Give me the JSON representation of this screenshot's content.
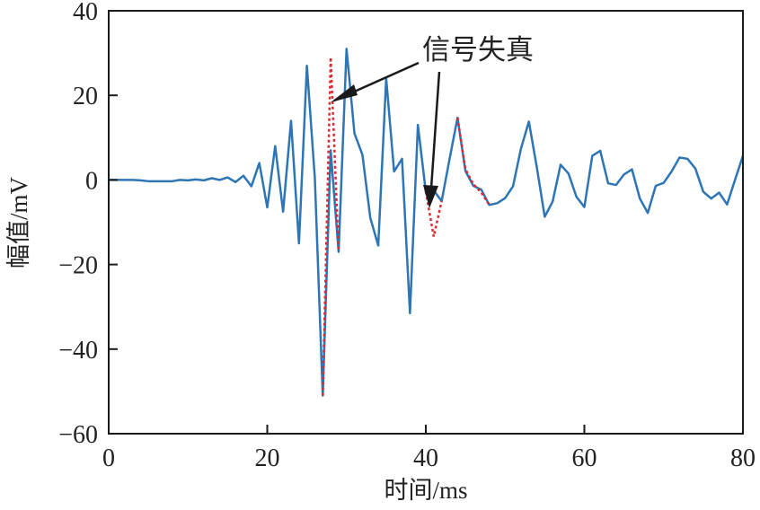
{
  "chart_data": {
    "type": "line",
    "title": "",
    "xlabel": "时间/ms",
    "ylabel": "幅值/mV",
    "xlim": [
      0,
      80
    ],
    "ylim": [
      -60,
      40
    ],
    "xticks": [
      0,
      20,
      40,
      60,
      80
    ],
    "yticks": [
      40,
      20,
      0,
      -20,
      -40,
      -60
    ],
    "xtick_labels": [
      "0",
      "20",
      "40",
      "60",
      "80"
    ],
    "ytick_labels": [
      "40",
      "20",
      "0",
      "−20",
      "−40",
      "−60"
    ],
    "grid": false,
    "annotation": "信号失真",
    "series": [
      {
        "name": "original",
        "color": "#2e75b6",
        "style": "solid",
        "x": [
          0,
          1,
          2,
          3,
          4,
          5,
          6,
          7,
          8,
          9,
          10,
          11,
          12,
          13,
          14,
          15,
          16,
          17,
          18,
          19,
          20,
          21,
          22,
          23,
          24,
          25,
          26,
          27,
          28,
          29,
          30,
          31,
          32,
          33,
          34,
          35,
          36,
          37,
          38,
          39,
          40,
          41,
          42,
          43,
          44,
          45,
          46,
          47,
          48,
          49,
          50,
          51,
          52,
          53,
          54,
          55,
          56,
          57,
          58,
          59,
          60,
          61,
          62,
          63,
          64,
          65,
          66,
          67,
          68,
          69,
          70,
          71,
          72,
          73,
          74,
          75,
          76,
          77,
          78,
          79,
          80
        ],
        "y": [
          0,
          0,
          0,
          0,
          -0.1,
          -0.3,
          -0.3,
          -0.3,
          -0.3,
          0,
          -0.1,
          0.1,
          -0.1,
          0.4,
          0,
          0.6,
          -0.5,
          1,
          -1.5,
          4,
          -6.5,
          8,
          -7.5,
          14,
          -15,
          27,
          0.5,
          -51,
          7,
          -17,
          31,
          11,
          6,
          -9,
          -15.5,
          24,
          2,
          5,
          -31.5,
          13,
          -2.8,
          -2.5,
          -5,
          5,
          14.7,
          2.1,
          -1.4,
          -2.3,
          -5.9,
          -5.5,
          -4.3,
          -1.5,
          7.4,
          13.8,
          3,
          -8.7,
          -5.1,
          3.6,
          1.5,
          -4,
          -6.4,
          5.7,
          6.9,
          -0.8,
          -1.2,
          1.3,
          2.5,
          -4.4,
          -7.8,
          -1.4,
          -0.7,
          2,
          5.3,
          5,
          2.7,
          -2.8,
          -4.4,
          -3,
          -5.8,
          0,
          5.7
        ]
      },
      {
        "name": "distorted",
        "color": "#e0282e",
        "style": "dotted",
        "segments": [
          {
            "x": [
              27,
              28,
              29
            ],
            "y": [
              -51,
              29,
              -17
            ]
          },
          {
            "x": [
              40,
              41,
              42
            ],
            "y": [
              -2.8,
              -13.4,
              -5
            ]
          },
          {
            "x": [
              44,
              45,
              46,
              47,
              48
            ],
            "y": [
              14.7,
              2.5,
              -1,
              -3,
              -5.9
            ]
          }
        ]
      }
    ]
  }
}
